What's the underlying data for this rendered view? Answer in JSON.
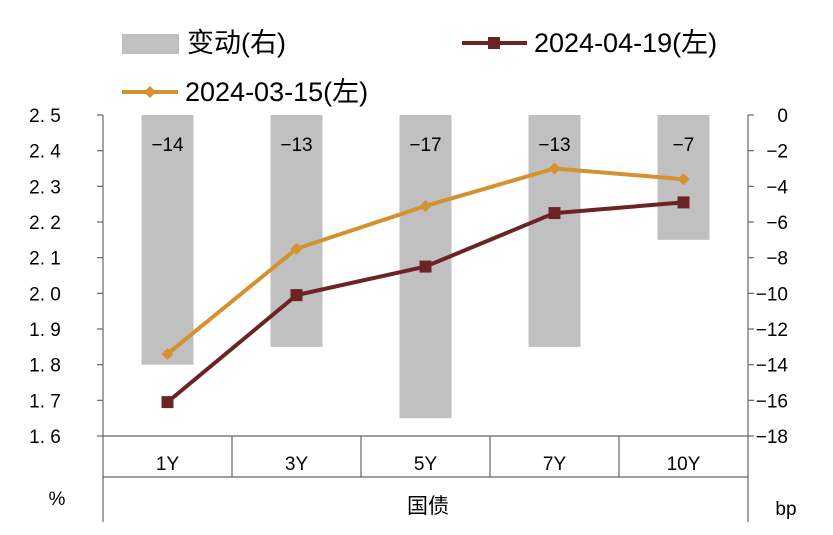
{
  "chart_data": {
    "type": "bar+line",
    "categories": [
      "1Y",
      "3Y",
      "5Y",
      "7Y",
      "10Y"
    ],
    "bar_series": {
      "name": "变动(右)",
      "values": [
        -14,
        -13,
        -17,
        -13,
        -7
      ],
      "labels": [
        "−14",
        "−13",
        "−17",
        "−13",
        "−7"
      ],
      "color": "#c0c0c0",
      "axis": "right"
    },
    "line_series": [
      {
        "name": "2024-04-19(左)",
        "values": [
          1.695,
          1.995,
          2.075,
          2.225,
          2.255
        ],
        "color": "#6b2423",
        "marker": "square",
        "axis": "left"
      },
      {
        "name": "2024-03-15(左)",
        "values": [
          1.83,
          2.125,
          2.245,
          2.35,
          2.32
        ],
        "color": "#d4912f",
        "marker": "diamond",
        "axis": "left"
      }
    ],
    "y_left": {
      "range": [
        1.6,
        2.5
      ],
      "ticks": [
        2.5,
        2.4,
        2.3,
        2.2,
        2.1,
        2.0,
        1.9,
        1.8,
        1.7,
        1.6
      ],
      "tick_labels": [
        "2. 5",
        "2. 4",
        "2. 3",
        "2. 2",
        "2. 1",
        "2. 0",
        "1. 9",
        "1. 8",
        "1. 7",
        "1. 6"
      ],
      "unit": "%"
    },
    "y_right": {
      "range": [
        -18,
        0
      ],
      "ticks": [
        0,
        -2,
        -4,
        -6,
        -8,
        -10,
        -12,
        -14,
        -16,
        -18
      ],
      "tick_labels": [
        "0",
        "−2",
        "−4",
        "−6",
        "−8",
        "−10",
        "−12",
        "−14",
        "−16",
        "−18"
      ],
      "unit": "bp"
    },
    "xlabel": "国债"
  }
}
